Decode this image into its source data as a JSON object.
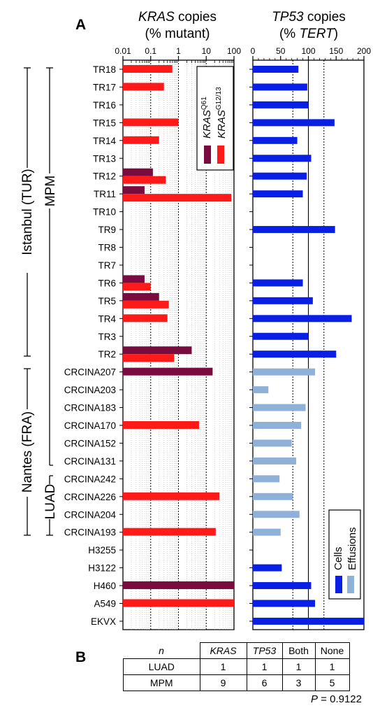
{
  "panel_labels": {
    "a": "A",
    "b": "B"
  },
  "left_header": {
    "line1_italic": "KRAS",
    "line1_rest": " copies",
    "line2": "(% mutant)"
  },
  "right_header": {
    "line1_italic": "TP53",
    "line1_rest": " copies",
    "line2_open": "(% ",
    "line2_italic": "TERT",
    "line2_close": ")"
  },
  "group_labels": {
    "istanbul": "Istanbul  (TUR)",
    "nantes": "Nantes (FRA)",
    "mpm": "MPM",
    "luad": "LUAD"
  },
  "legend_left": {
    "q61": {
      "italic": "KRAS",
      "sup": "Q61"
    },
    "g12": {
      "italic": "KRAS",
      "sup": "G12/13"
    }
  },
  "legend_right": {
    "cells": "Cells",
    "effusions": "Effusions"
  },
  "colors": {
    "q61": "#7a0b3f",
    "g12": "#ff1a1a",
    "cells": "#0a1fe6",
    "effusions": "#8fb0d8"
  },
  "chart_data": [
    {
      "type": "bar",
      "orientation": "horizontal",
      "scale": "log",
      "xlim": [
        0.01,
        100
      ],
      "ticks": [
        "0.01",
        "0.1",
        "1",
        "10",
        "100"
      ],
      "categories": [
        "TR18",
        "TR17",
        "TR16",
        "TR15",
        "TR14",
        "TR13",
        "TR12",
        "TR11",
        "TR10",
        "TR9",
        "TR8",
        "TR7",
        "TR6",
        "TR5",
        "TR4",
        "TR3",
        "TR2",
        "CRCINA207",
        "CRCINA203",
        "CRCINA183",
        "CRCINA170",
        "CRCINA152",
        "CRCINA131",
        "CRCINA242",
        "CRCINA226",
        "CRCINA204",
        "CRCINA193",
        "H3255",
        "H3122",
        "H460",
        "A549",
        "EKVX"
      ],
      "series": [
        {
          "name": "KRAS Q61",
          "values": [
            null,
            null,
            null,
            null,
            null,
            null,
            0.12,
            0.06,
            null,
            null,
            null,
            null,
            0.06,
            0.2,
            null,
            null,
            3,
            17,
            null,
            null,
            null,
            null,
            null,
            null,
            null,
            null,
            null,
            null,
            null,
            100,
            null,
            null
          ]
        },
        {
          "name": "KRAS G12/13",
          "values": [
            0.6,
            0.3,
            null,
            1.0,
            0.2,
            null,
            0.35,
            80,
            null,
            null,
            null,
            null,
            0.1,
            0.45,
            0.4,
            null,
            0.7,
            null,
            null,
            null,
            5.5,
            null,
            null,
            null,
            30,
            null,
            22,
            null,
            null,
            null,
            100,
            null
          ]
        }
      ]
    },
    {
      "type": "bar",
      "orientation": "horizontal",
      "xlim": [
        0,
        200
      ],
      "ticks": [
        "0",
        "50",
        "100",
        "150",
        "200"
      ],
      "reference_lines": [
        72,
        100,
        128
      ],
      "categories": [
        "TR18",
        "TR17",
        "TR16",
        "TR15",
        "TR14",
        "TR13",
        "TR12",
        "TR11",
        "TR10",
        "TR9",
        "TR8",
        "TR7",
        "TR6",
        "TR5",
        "TR4",
        "TR3",
        "TR2",
        "CRCINA207",
        "CRCINA203",
        "CRCINA183",
        "CRCINA170",
        "CRCINA152",
        "CRCINA131",
        "CRCINA242",
        "CRCINA226",
        "CRCINA204",
        "CRCINA193",
        "H3255",
        "H3122",
        "H460",
        "A549",
        "EKVX"
      ],
      "series": [
        {
          "name": "Cells",
          "values": [
            82,
            98,
            100,
            147,
            80,
            105,
            97,
            90,
            null,
            148,
            null,
            null,
            90,
            108,
            178,
            100,
            150,
            null,
            null,
            null,
            null,
            null,
            null,
            null,
            null,
            null,
            null,
            null,
            52,
            105,
            112,
            200
          ]
        },
        {
          "name": "Effusions",
          "values": [
            null,
            null,
            null,
            null,
            null,
            null,
            null,
            null,
            null,
            null,
            null,
            null,
            null,
            null,
            null,
            null,
            null,
            112,
            28,
            95,
            87,
            70,
            78,
            48,
            72,
            84,
            50,
            null,
            null,
            null,
            null,
            null
          ]
        }
      ]
    }
  ],
  "table": {
    "headers": [
      "n",
      "KRAS",
      "TP53",
      "Both",
      "None"
    ],
    "rows": [
      {
        "label": "LUAD",
        "values": [
          "1",
          "1",
          "1",
          "1"
        ]
      },
      {
        "label": "MPM",
        "values": [
          "9",
          "6",
          "3",
          "5"
        ]
      }
    ],
    "p_label": "P",
    "p_value": " = 0.9122"
  }
}
